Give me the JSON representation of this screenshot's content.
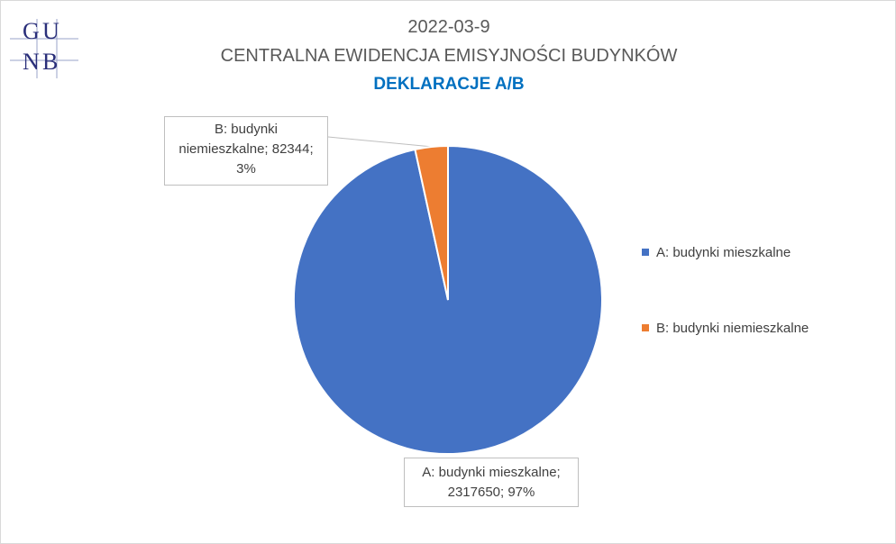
{
  "logo_text": "GUNB",
  "chart_data": {
    "type": "pie",
    "title": "2022-03-9",
    "subtitle": "CENTRALNA EWIDENCJA EMISYJNOŚCI BUDYNKÓW",
    "subtitle2": "DEKLARACJE A/B",
    "legend_position": "right",
    "slices": [
      {
        "label": "A: budynki mieszkalne",
        "value": 2317650,
        "percent": "97%",
        "color": "#4472c4"
      },
      {
        "label": "B: budynki niemieszkalne",
        "value": 82344,
        "percent": "3%",
        "color": "#ed7d31"
      }
    ],
    "data_labels": {
      "a": {
        "line1": "A: budynki mieszkalne;",
        "line2": "2317650; 97%"
      },
      "b": {
        "line1": "B: budynki",
        "line2": "niemieszkalne; 82344;",
        "line3": "3%"
      }
    }
  }
}
